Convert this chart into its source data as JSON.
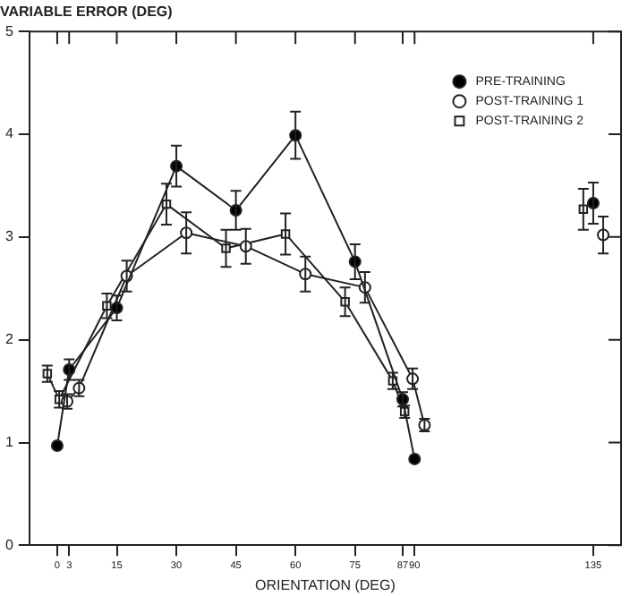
{
  "chart_data": {
    "type": "line",
    "title": "VARIABLE ERROR (DEG)",
    "xlabel": "ORIENTATION (DEG)",
    "xlim": [
      -7,
      142
    ],
    "xticks": [
      0,
      3,
      15,
      30,
      45,
      60,
      75,
      87,
      90,
      135
    ],
    "ylim": [
      0,
      5
    ],
    "yticks": [
      0,
      1,
      2,
      3,
      4,
      5
    ],
    "grid": false,
    "legend": "top right",
    "line_style": "solid",
    "series": [
      {
        "name": "PRE-TRAINING",
        "color": "#000000",
        "marker": "circle",
        "x": [
          0,
          3,
          15,
          30,
          45,
          60,
          75,
          87,
          90,
          112,
          135
        ],
        "values": [
          0.97,
          1.71,
          2.31,
          3.69,
          3.26,
          3.99,
          2.76,
          1.42,
          0.84,
          null,
          3.33
        ],
        "errors": [
          null,
          0.1,
          0.12,
          0.2,
          0.19,
          0.23,
          0.17,
          0.07,
          null,
          null,
          0.2
        ]
      },
      {
        "name": "POST-TRAINING 1",
        "color": "#ffffff",
        "marker": "circle",
        "x": [
          2.5,
          5.5,
          17.5,
          32.5,
          47.5,
          62.5,
          77.5,
          89.5,
          92.5,
          112,
          137.5
        ],
        "values": [
          1.4,
          1.53,
          2.62,
          3.04,
          2.91,
          2.64,
          2.51,
          1.62,
          1.17,
          null,
          3.02
        ],
        "errors": [
          0.07,
          0.08,
          0.15,
          0.2,
          0.17,
          0.17,
          0.15,
          0.1,
          0.06,
          null,
          0.18
        ]
      },
      {
        "name": "POST-TRAINING 2",
        "color": "#ffffff",
        "marker": "square",
        "x": [
          -2.5,
          0.5,
          12.5,
          27.5,
          42.5,
          57.5,
          72.5,
          84.5,
          87.5,
          112,
          132.5
        ],
        "values": [
          1.67,
          1.42,
          2.33,
          3.32,
          2.89,
          3.03,
          2.37,
          1.6,
          1.3,
          null,
          3.27
        ],
        "errors": [
          0.08,
          0.08,
          0.12,
          0.2,
          0.18,
          0.2,
          0.14,
          0.08,
          0.06,
          null,
          0.2
        ]
      }
    ]
  }
}
